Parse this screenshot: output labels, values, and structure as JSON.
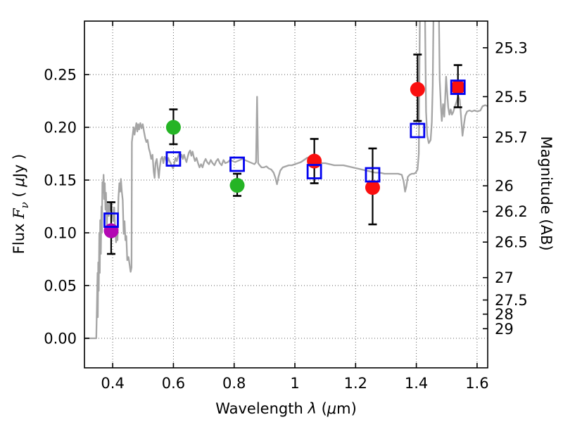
{
  "figure": {
    "background": "#ffffff",
    "frame_color": "#000000",
    "grid_color": "#444444",
    "error_bar_color": "#000000"
  },
  "chart_data": {
    "type": "line+scatter",
    "title": "",
    "xlabel_parts": [
      {
        "text": "Wavelength  ",
        "style": "roman"
      },
      {
        "text": "λ",
        "style": "italic-sans"
      },
      {
        "text": " (",
        "style": "roman"
      },
      {
        "text": "μ",
        "style": "italic-sans"
      },
      {
        "text": "m)",
        "style": "roman"
      }
    ],
    "ylabel_left_parts": [
      {
        "text": "Flux  ",
        "style": "roman"
      },
      {
        "text": "F",
        "style": "italic-serif"
      },
      {
        "text": "ν",
        "style": "italic-serif-sub"
      },
      {
        "text": "  ( ",
        "style": "roman"
      },
      {
        "text": "μ",
        "style": "italic-sans"
      },
      {
        "text": "Jy )",
        "style": "roman"
      }
    ],
    "ylabel_right": "Magnitude (AB)",
    "xlim": [
      0.307,
      1.635
    ],
    "ylim": [
      -0.028,
      0.3007
    ],
    "x_ticks": [
      0.4,
      0.6,
      0.8,
      1.0,
      1.2,
      1.4,
      1.6
    ],
    "x_tick_labels": [
      "0.4",
      "0.6",
      "0.8",
      "1",
      "1.2",
      "1.4",
      "1.6"
    ],
    "y_ticks_left": [
      0.0,
      0.05,
      0.1,
      0.15,
      0.2,
      0.25
    ],
    "y_tick_labels_left": [
      "0.00",
      "0.05",
      "0.10",
      "0.15",
      "0.20",
      "0.25"
    ],
    "y_ticks_right_mag": [
      25.3,
      25.5,
      25.7,
      26,
      26.2,
      26.5,
      27,
      27.5,
      28,
      29
    ],
    "y_tick_labels_right": [
      "25.3",
      "25.5",
      "25.7",
      "26",
      "26.2",
      "26.5",
      "27",
      "27.5",
      "28",
      "29"
    ],
    "mag_zeropoint": 23.9,
    "grid": true,
    "legend": "none",
    "series": [
      {
        "name": "model-spectrum",
        "kind": "line",
        "color": "#a5a5a5",
        "line_width": 2.3,
        "points": [
          [
            0.307,
            0.0
          ],
          [
            0.346,
            0.0
          ],
          [
            0.348,
            0.03
          ],
          [
            0.35,
            0.062
          ],
          [
            0.351,
            0.02
          ],
          [
            0.3525,
            0.072
          ],
          [
            0.354,
            0.045
          ],
          [
            0.356,
            0.1
          ],
          [
            0.3575,
            0.062
          ],
          [
            0.359,
            0.112
          ],
          [
            0.361,
            0.08
          ],
          [
            0.363,
            0.125
          ],
          [
            0.3645,
            0.1
          ],
          [
            0.366,
            0.148
          ],
          [
            0.368,
            0.138
          ],
          [
            0.37,
            0.155
          ],
          [
            0.372,
            0.132
          ],
          [
            0.374,
            0.147
          ],
          [
            0.376,
            0.122
          ],
          [
            0.378,
            0.138
          ],
          [
            0.381,
            0.108
          ],
          [
            0.384,
            0.127
          ],
          [
            0.387,
            0.116
          ],
          [
            0.39,
            0.129
          ],
          [
            0.393,
            0.121
          ],
          [
            0.396,
            0.129
          ],
          [
            0.399,
            0.117
          ],
          [
            0.402,
            0.111
          ],
          [
            0.405,
            0.124
          ],
          [
            0.408,
            0.104
          ],
          [
            0.411,
            0.091
          ],
          [
            0.4135,
            0.101
          ],
          [
            0.416,
            0.093
          ],
          [
            0.419,
            0.133
          ],
          [
            0.422,
            0.147
          ],
          [
            0.4245,
            0.139
          ],
          [
            0.427,
            0.151
          ],
          [
            0.43,
            0.139
          ],
          [
            0.433,
            0.131
          ],
          [
            0.436,
            0.099
          ],
          [
            0.439,
            0.111
          ],
          [
            0.442,
            0.093
          ],
          [
            0.445,
            0.097
          ],
          [
            0.448,
            0.074
          ],
          [
            0.452,
            0.077
          ],
          [
            0.456,
            0.069
          ],
          [
            0.459,
            0.063
          ],
          [
            0.462,
            0.067
          ],
          [
            0.4632,
            0.186
          ],
          [
            0.466,
            0.193
          ],
          [
            0.469,
            0.2
          ],
          [
            0.472,
            0.193
          ],
          [
            0.475,
            0.199
          ],
          [
            0.478,
            0.204
          ],
          [
            0.481,
            0.196
          ],
          [
            0.484,
            0.203
          ],
          [
            0.487,
            0.198
          ],
          [
            0.491,
            0.204
          ],
          [
            0.495,
            0.199
          ],
          [
            0.499,
            0.203
          ],
          [
            0.503,
            0.196
          ],
          [
            0.507,
            0.19
          ],
          [
            0.511,
            0.186
          ],
          [
            0.515,
            0.188
          ],
          [
            0.519,
            0.18
          ],
          [
            0.523,
            0.176
          ],
          [
            0.527,
            0.17
          ],
          [
            0.531,
            0.174
          ],
          [
            0.535,
            0.158
          ],
          [
            0.538,
            0.152
          ],
          [
            0.541,
            0.166
          ],
          [
            0.545,
            0.17
          ],
          [
            0.549,
            0.16
          ],
          [
            0.552,
            0.152
          ],
          [
            0.555,
            0.162
          ],
          [
            0.559,
            0.17
          ],
          [
            0.563,
            0.172
          ],
          [
            0.567,
            0.166
          ],
          [
            0.571,
            0.172
          ],
          [
            0.575,
            0.17
          ],
          [
            0.579,
            0.166
          ],
          [
            0.583,
            0.171
          ],
          [
            0.587,
            0.168
          ],
          [
            0.591,
            0.166
          ],
          [
            0.595,
            0.163
          ],
          [
            0.599,
            0.161
          ],
          [
            0.603,
            0.166
          ],
          [
            0.607,
            0.171
          ],
          [
            0.611,
            0.168
          ],
          [
            0.615,
            0.172
          ],
          [
            0.619,
            0.175
          ],
          [
            0.623,
            0.171
          ],
          [
            0.627,
            0.174
          ],
          [
            0.631,
            0.17
          ],
          [
            0.635,
            0.174
          ],
          [
            0.639,
            0.17
          ],
          [
            0.643,
            0.167
          ],
          [
            0.647,
            0.172
          ],
          [
            0.651,
            0.176
          ],
          [
            0.655,
            0.178
          ],
          [
            0.659,
            0.173
          ],
          [
            0.663,
            0.177
          ],
          [
            0.667,
            0.172
          ],
          [
            0.671,
            0.168
          ],
          [
            0.676,
            0.171
          ],
          [
            0.681,
            0.166
          ],
          [
            0.686,
            0.162
          ],
          [
            0.691,
            0.165
          ],
          [
            0.696,
            0.162
          ],
          [
            0.701,
            0.167
          ],
          [
            0.706,
            0.17
          ],
          [
            0.711,
            0.167
          ],
          [
            0.717,
            0.165
          ],
          [
            0.723,
            0.169
          ],
          [
            0.729,
            0.166
          ],
          [
            0.735,
            0.164
          ],
          [
            0.741,
            0.168
          ],
          [
            0.747,
            0.17
          ],
          [
            0.753,
            0.166
          ],
          [
            0.759,
            0.164
          ],
          [
            0.765,
            0.169
          ],
          [
            0.771,
            0.166
          ],
          [
            0.779,
            0.167
          ],
          [
            0.787,
            0.169
          ],
          [
            0.795,
            0.168
          ],
          [
            0.803,
            0.167
          ],
          [
            0.811,
            0.168
          ],
          [
            0.819,
            0.169
          ],
          [
            0.827,
            0.17
          ],
          [
            0.835,
            0.169
          ],
          [
            0.843,
            0.168
          ],
          [
            0.851,
            0.167
          ],
          [
            0.859,
            0.166
          ],
          [
            0.867,
            0.165
          ],
          [
            0.872,
            0.167
          ],
          [
            0.8755,
            0.229
          ],
          [
            0.879,
            0.166
          ],
          [
            0.884,
            0.164
          ],
          [
            0.89,
            0.162
          ],
          [
            0.898,
            0.162
          ],
          [
            0.906,
            0.163
          ],
          [
            0.914,
            0.161
          ],
          [
            0.922,
            0.16
          ],
          [
            0.93,
            0.157
          ],
          [
            0.936,
            0.152
          ],
          [
            0.941,
            0.146
          ],
          [
            0.946,
            0.153
          ],
          [
            0.952,
            0.159
          ],
          [
            0.96,
            0.162
          ],
          [
            0.97,
            0.163
          ],
          [
            0.98,
            0.164
          ],
          [
            0.99,
            0.164
          ],
          [
            1.0,
            0.165
          ],
          [
            1.01,
            0.166
          ],
          [
            1.02,
            0.167
          ],
          [
            1.03,
            0.169
          ],
          [
            1.04,
            0.171
          ],
          [
            1.05,
            0.172
          ],
          [
            1.06,
            0.171
          ],
          [
            1.07,
            0.169
          ],
          [
            1.08,
            0.167
          ],
          [
            1.09,
            0.166
          ],
          [
            1.1,
            0.166
          ],
          [
            1.115,
            0.165
          ],
          [
            1.13,
            0.164
          ],
          [
            1.145,
            0.164
          ],
          [
            1.16,
            0.164
          ],
          [
            1.175,
            0.163
          ],
          [
            1.19,
            0.162
          ],
          [
            1.205,
            0.161
          ],
          [
            1.22,
            0.16
          ],
          [
            1.235,
            0.159
          ],
          [
            1.25,
            0.158
          ],
          [
            1.265,
            0.157
          ],
          [
            1.28,
            0.157
          ],
          [
            1.295,
            0.156
          ],
          [
            1.31,
            0.156
          ],
          [
            1.325,
            0.156
          ],
          [
            1.34,
            0.156
          ],
          [
            1.352,
            0.155
          ],
          [
            1.358,
            0.149
          ],
          [
            1.363,
            0.139
          ],
          [
            1.367,
            0.144
          ],
          [
            1.372,
            0.153
          ],
          [
            1.378,
            0.155
          ],
          [
            1.385,
            0.156
          ],
          [
            1.392,
            0.156
          ],
          [
            1.398,
            0.157
          ],
          [
            1.404,
            0.16
          ],
          [
            1.408,
            0.175
          ],
          [
            1.412,
            0.32
          ],
          [
            1.428,
            0.32
          ],
          [
            1.432,
            0.215
          ],
          [
            1.436,
            0.192
          ],
          [
            1.441,
            0.185
          ],
          [
            1.447,
            0.188
          ],
          [
            1.451,
            0.205
          ],
          [
            1.454,
            0.24
          ],
          [
            1.457,
            0.32
          ],
          [
            1.474,
            0.32
          ],
          [
            1.477,
            0.245
          ],
          [
            1.481,
            0.219
          ],
          [
            1.484,
            0.206
          ],
          [
            1.488,
            0.222
          ],
          [
            1.492,
            0.21
          ],
          [
            1.495,
            0.228
          ],
          [
            1.498,
            0.248
          ],
          [
            1.501,
            0.235
          ],
          [
            1.505,
            0.219
          ],
          [
            1.509,
            0.212
          ],
          [
            1.513,
            0.217
          ],
          [
            1.517,
            0.212
          ],
          [
            1.521,
            0.214
          ],
          [
            1.526,
            0.219
          ],
          [
            1.532,
            0.224
          ],
          [
            1.538,
            0.23
          ],
          [
            1.543,
            0.226
          ],
          [
            1.548,
            0.207
          ],
          [
            1.552,
            0.192
          ],
          [
            1.556,
            0.201
          ],
          [
            1.561,
            0.211
          ],
          [
            1.567,
            0.215
          ],
          [
            1.575,
            0.216
          ],
          [
            1.583,
            0.215
          ],
          [
            1.591,
            0.216
          ],
          [
            1.601,
            0.215
          ],
          [
            1.611,
            0.216
          ],
          [
            1.618,
            0.22
          ],
          [
            1.627,
            0.221
          ],
          [
            1.635,
            0.22
          ]
        ]
      },
      {
        "name": "observed-magenta-point",
        "kind": "scatter",
        "marker": "circle",
        "color": "#b307b3",
        "points": [
          {
            "x": 0.395,
            "y": 0.102,
            "ep": 0.027,
            "em": 0.022
          }
        ]
      },
      {
        "name": "observed-green-points",
        "kind": "scatter",
        "marker": "circle",
        "color": "#25b425",
        "points": [
          {
            "x": 0.6,
            "y": 0.2,
            "ep": 0.017,
            "em": 0.016
          },
          {
            "x": 0.81,
            "y": 0.145,
            "ep": 0.011,
            "em": 0.01
          }
        ]
      },
      {
        "name": "observed-red-points",
        "kind": "scatter",
        "marker": "circle",
        "color": "#fa0f0f",
        "points": [
          {
            "x": 1.064,
            "y": 0.168,
            "ep": 0.021,
            "em": 0.021
          },
          {
            "x": 1.256,
            "y": 0.143,
            "ep": 0.037,
            "em": 0.035
          },
          {
            "x": 1.404,
            "y": 0.236,
            "ep": 0.033,
            "em": 0.03
          },
          {
            "x": 1.537,
            "y": 0.238,
            "ep": 0.021,
            "em": 0.019
          }
        ]
      },
      {
        "name": "model-photometry-squares",
        "kind": "scatter",
        "marker": "open-square",
        "color": "#0202f0",
        "points": [
          {
            "x": 0.395,
            "y": 0.112
          },
          {
            "x": 0.6,
            "y": 0.17
          },
          {
            "x": 0.81,
            "y": 0.165
          },
          {
            "x": 1.064,
            "y": 0.158
          },
          {
            "x": 1.256,
            "y": 0.155
          },
          {
            "x": 1.404,
            "y": 0.197
          },
          {
            "x": 1.537,
            "y": 0.238
          }
        ]
      }
    ]
  }
}
